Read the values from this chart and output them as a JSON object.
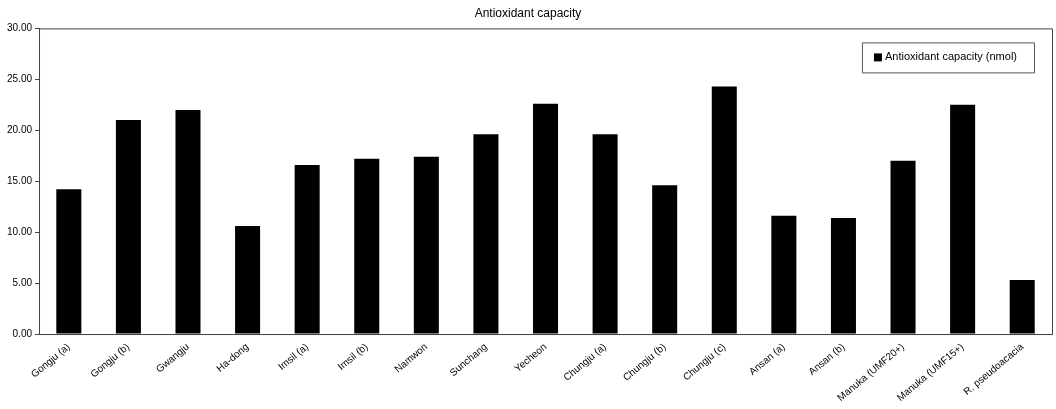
{
  "chart_data": {
    "type": "bar",
    "title": "Antioxidant capacity",
    "categories": [
      "Gongju (a)",
      "Gongju (b)",
      "Gwangju",
      "Ha-dong",
      "Imsil (a)",
      "Imsil (b)",
      "Namwon",
      "Sunchang",
      "Yecheon",
      "Chungju (a)",
      "Chungju (b)",
      "Chungju (c)",
      "Ansan (a)",
      "Ansan (b)",
      "Manuka (UMF20+)",
      "Manuka (UMF15+)",
      "R. pseudoacacia"
    ],
    "series": [
      {
        "name": "Antioxidant capacity (nmol)",
        "color": "#000000",
        "values": [
          14.2,
          21.0,
          22.0,
          10.6,
          16.6,
          17.2,
          17.4,
          19.6,
          22.6,
          19.6,
          14.6,
          24.3,
          11.6,
          11.4,
          17.0,
          22.5,
          5.3
        ]
      }
    ],
    "ylim": [
      0,
      30
    ],
    "yticks": [
      {
        "value": 0,
        "label": "0.00"
      },
      {
        "value": 5,
        "label": "5.00"
      },
      {
        "value": 10,
        "label": "10.00"
      },
      {
        "value": 15,
        "label": "15.00"
      },
      {
        "value": 20,
        "label": "20.00"
      },
      {
        "value": 25,
        "label": "25.00"
      },
      {
        "value": 30,
        "label": "30.00"
      }
    ],
    "grid": false,
    "legend": "top right"
  }
}
